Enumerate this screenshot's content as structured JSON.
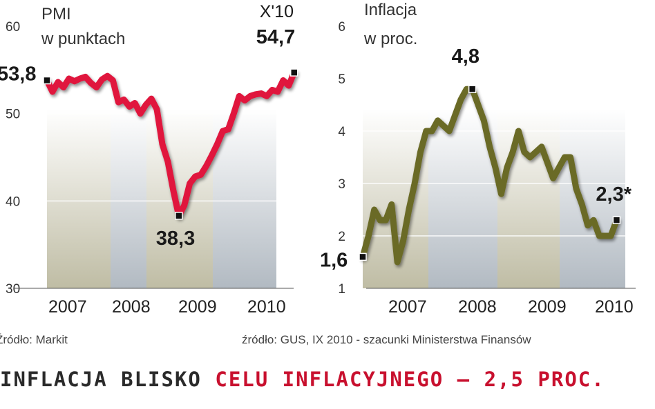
{
  "headline": {
    "part1": "INFLACJA BLISKO",
    "part2": "CELU INFLACYJNEGO – 2,5 PROC."
  },
  "colors": {
    "pmi_line": "#e0143c",
    "inflation_line": "#6b6b25",
    "headline_accent": "#c8102e",
    "band_fill": "#c9c6ad"
  },
  "chart_data": [
    {
      "type": "line",
      "title": "PMI",
      "subtitle": "w punktach",
      "xlabel": "",
      "ylabel": "",
      "source": "Źródło: Markit",
      "x_tick_labels": [
        "2007",
        "2008",
        "2009",
        "2010"
      ],
      "y_ticks": [
        30,
        40,
        50,
        60
      ],
      "y_tick_labels": [
        "30",
        "40",
        "50",
        "60"
      ],
      "ylim": [
        30,
        60
      ],
      "grid": true,
      "series": [
        {
          "name": "",
          "x": [
            "2007-01",
            "2007-02",
            "2007-03",
            "2007-04",
            "2007-05",
            "2007-06",
            "2007-07",
            "2007-08",
            "2007-09",
            "2007-10",
            "2007-11",
            "2007-12",
            "2008-01",
            "2008-02",
            "2008-03",
            "2008-04",
            "2008-05",
            "2008-06",
            "2008-07",
            "2008-08",
            "2008-09",
            "2008-10",
            "2008-11",
            "2008-12",
            "2009-01",
            "2009-02",
            "2009-03",
            "2009-04",
            "2009-05",
            "2009-06",
            "2009-07",
            "2009-08",
            "2009-09",
            "2009-10",
            "2009-11",
            "2009-12",
            "2010-01",
            "2010-02",
            "2010-03",
            "2010-04",
            "2010-05",
            "2010-06",
            "2010-07",
            "2010-08",
            "2010-09",
            "2010-10"
          ],
          "values": [
            53.8,
            52.5,
            53.6,
            53.0,
            54.0,
            53.7,
            54.0,
            54.2,
            53.5,
            53.0,
            53.9,
            54.3,
            53.8,
            51.3,
            51.6,
            50.8,
            51.2,
            50.0,
            51.0,
            51.7,
            50.5,
            46.5,
            44.5,
            41.2,
            38.3,
            39.5,
            42.0,
            42.8,
            43.0,
            44.0,
            45.2,
            46.5,
            48.0,
            48.2,
            50.0,
            52.0,
            51.5,
            52.0,
            52.2,
            52.3,
            52.0,
            52.7,
            52.5,
            53.8,
            53.2,
            54.7
          ]
        }
      ],
      "annotations": [
        {
          "text": "53,8",
          "x": "2007-01",
          "y": 53.8
        },
        {
          "text": "38,3",
          "x": "2009-01",
          "y": 38.3
        },
        {
          "text": "X'10",
          "x": "2010-10",
          "y": 54.7
        },
        {
          "text": "54,7",
          "x": "2010-10",
          "y": 54.7
        }
      ]
    },
    {
      "type": "line",
      "title": "Inflacja",
      "subtitle": "w proc.",
      "xlabel": "",
      "ylabel": "",
      "source": "źródło: GUS, IX 2010 - szacunki Ministerstwa Finansów",
      "x_tick_labels": [
        "2007",
        "2008",
        "2009",
        "2010"
      ],
      "y_ticks": [
        1,
        2,
        3,
        4,
        5,
        6
      ],
      "y_tick_labels": [
        "1",
        "2",
        "3",
        "4",
        "5",
        "6"
      ],
      "ylim": [
        1,
        6
      ],
      "grid": true,
      "series": [
        {
          "name": "",
          "x": [
            "2007-01",
            "2007-02",
            "2007-03",
            "2007-04",
            "2007-05",
            "2007-06",
            "2007-07",
            "2007-08",
            "2007-09",
            "2007-10",
            "2007-11",
            "2007-12",
            "2008-01",
            "2008-02",
            "2008-03",
            "2008-04",
            "2008-05",
            "2008-06",
            "2008-07",
            "2008-08",
            "2008-09",
            "2008-10",
            "2008-11",
            "2008-12",
            "2009-01",
            "2009-02",
            "2009-03",
            "2009-04",
            "2009-05",
            "2009-06",
            "2009-07",
            "2009-08",
            "2009-09",
            "2009-10",
            "2009-11",
            "2009-12",
            "2010-01",
            "2010-02",
            "2010-03",
            "2010-04",
            "2010-05",
            "2010-06",
            "2010-07",
            "2010-08",
            "2010-09"
          ],
          "values": [
            1.6,
            2.0,
            2.5,
            2.3,
            2.3,
            2.6,
            1.5,
            1.9,
            2.5,
            3.0,
            3.6,
            4.0,
            4.0,
            4.2,
            4.1,
            4.0,
            4.3,
            4.6,
            4.8,
            4.8,
            4.5,
            4.2,
            3.7,
            3.3,
            2.8,
            3.3,
            3.6,
            4.0,
            3.6,
            3.5,
            3.6,
            3.7,
            3.4,
            3.1,
            3.3,
            3.5,
            3.5,
            2.9,
            2.6,
            2.2,
            2.3,
            2.0,
            2.0,
            2.0,
            2.3
          ]
        }
      ],
      "annotations": [
        {
          "text": "1,6",
          "x": "2007-01",
          "y": 1.6
        },
        {
          "text": "4,8",
          "x": "2008-08",
          "y": 4.8
        },
        {
          "text": "2,3*",
          "x": "2010-09",
          "y": 2.3
        }
      ]
    }
  ]
}
